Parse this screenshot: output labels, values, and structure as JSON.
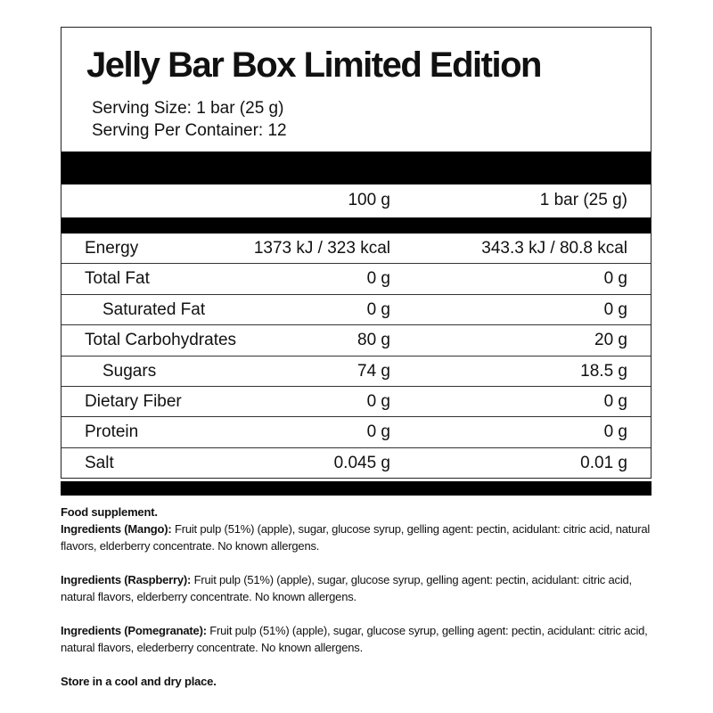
{
  "title": "Jelly Bar Box Limited Edition",
  "serving_size": "Serving Size: 1 bar (25 g)",
  "servings_per_container": "Serving Per Container: 12",
  "columns": [
    "100 g",
    "1 bar (25 g)"
  ],
  "rows": [
    {
      "label": "Energy",
      "per100": "1373 kJ / 323 kcal",
      "perbar": "343.3 kJ / 80.8 kcal",
      "indent": false
    },
    {
      "label": "Total Fat",
      "per100": "0 g",
      "perbar": "0 g",
      "indent": false
    },
    {
      "label": "Saturated Fat",
      "per100": "0 g",
      "perbar": "0 g",
      "indent": true
    },
    {
      "label": "Total Carbohydrates",
      "per100": "80 g",
      "perbar": "20 g",
      "indent": false
    },
    {
      "label": "Sugars",
      "per100": "74 g",
      "perbar": "18.5 g",
      "indent": true
    },
    {
      "label": "Dietary Fiber",
      "per100": "0 g",
      "perbar": "0 g",
      "indent": false
    },
    {
      "label": "Protein",
      "per100": "0 g",
      "perbar": "0 g",
      "indent": false
    },
    {
      "label": "Salt",
      "per100": "0.045 g",
      "perbar": "0.01 g",
      "indent": false
    }
  ],
  "notes": {
    "food_supplement": "Food supplement.",
    "mango_label": "Ingredients (Mango):",
    "mango_text": " Fruit pulp (51%) (apple), sugar, glucose syrup, gelling agent: pectin, acidulant: citric acid, natural flavors, elderberry concentrate. No known allergens.",
    "raspberry_label": "Ingredients (Raspberry):",
    "raspberry_text": " Fruit pulp (51%) (apple), sugar, glucose syrup, gelling agent: pectin, acidulant: citric acid, natural flavors, elderberry concentrate. No known allergens.",
    "pomegranate_label": "Ingredients (Pomegranate):",
    "pomegranate_text": " Fruit pulp (51%) (apple), sugar, glucose syrup, gelling agent: pectin, acidulant: citric acid, natural flavors, elederberry concentrate. No known allergens.",
    "storage": "Store in a cool and dry place."
  }
}
